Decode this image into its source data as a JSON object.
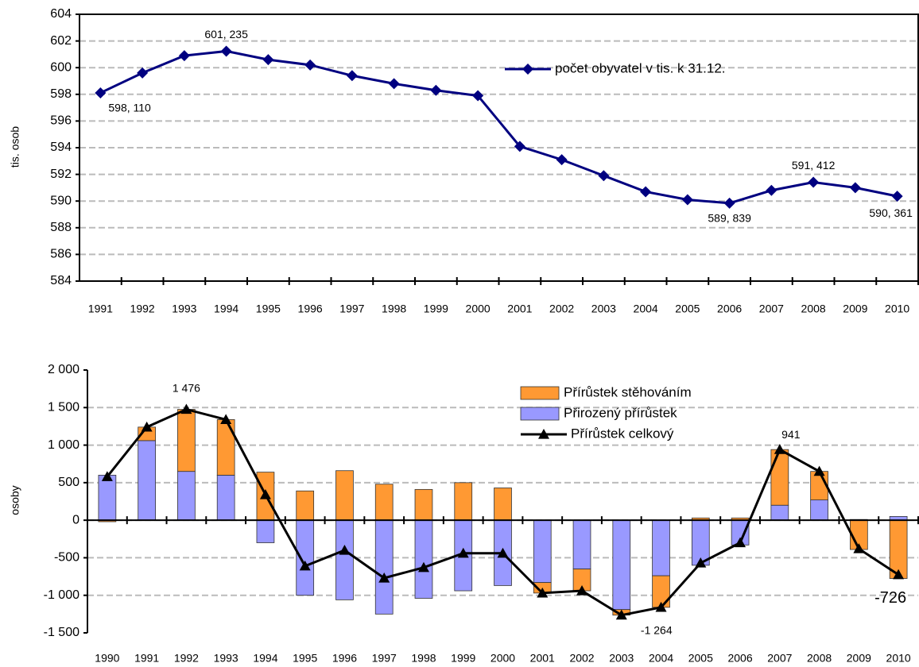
{
  "chart_data": [
    {
      "type": "line",
      "y_label": "tis. osob",
      "categories": [
        "1991",
        "1992",
        "1993",
        "1994",
        "1995",
        "1996",
        "1997",
        "1998",
        "1999",
        "2000",
        "2001",
        "2002",
        "2003",
        "2004",
        "2005",
        "2006",
        "2007",
        "2008",
        "2009",
        "2010"
      ],
      "series": [
        {
          "name": "počet obyvatel v tis. k 31.12.",
          "color": "#000080",
          "values": [
            598.11,
            599.6,
            600.9,
            601.235,
            600.6,
            600.2,
            599.4,
            598.8,
            598.3,
            597.9,
            594.1,
            593.1,
            591.9,
            590.7,
            590.1,
            589.839,
            590.8,
            591.412,
            591.0,
            590.361
          ],
          "value_labels": [
            "598, 110",
            null,
            null,
            "601, 235",
            null,
            null,
            null,
            null,
            null,
            null,
            null,
            null,
            null,
            null,
            null,
            "589, 839",
            null,
            "591, 412",
            null,
            "590, 361"
          ]
        }
      ],
      "ylim": [
        584,
        604
      ],
      "yticks": [
        584,
        586,
        588,
        590,
        592,
        594,
        596,
        598,
        600,
        602,
        604
      ],
      "grid": true
    },
    {
      "type": "stacked-bar-line",
      "y_label": "osoby",
      "categories": [
        "1990",
        "1991",
        "1992",
        "1993",
        "1994",
        "1995",
        "1996",
        "1997",
        "1998",
        "1999",
        "2000",
        "2001",
        "2002",
        "2003",
        "2004",
        "2005",
        "2006",
        "2007",
        "2008",
        "2009",
        "2010"
      ],
      "series": [
        {
          "name": "Přírůstek stěhováním",
          "kind": "bar",
          "color": "#ff9933",
          "values": [
            -20,
            180,
            826,
            740,
            640,
            390,
            660,
            480,
            410,
            500,
            430,
            -140,
            -290,
            -74,
            -420,
            30,
            30,
            741,
            380,
            -390,
            -776
          ]
        },
        {
          "name": "Přirozený přírůstek",
          "kind": "bar",
          "color": "#9999ff",
          "values": [
            600,
            1060,
            650,
            600,
            -300,
            -1000,
            -1060,
            -1250,
            -1040,
            -940,
            -870,
            -830,
            -650,
            -1190,
            -740,
            -600,
            -330,
            200,
            270,
            10,
            50
          ]
        },
        {
          "name": "Přírůstek celkový",
          "kind": "line",
          "color": "#000000",
          "values": [
            580,
            1240,
            1476,
            1340,
            340,
            -610,
            -400,
            -770,
            -630,
            -440,
            -440,
            -970,
            -940,
            -1264,
            -1160,
            -570,
            -300,
            941,
            650,
            -380,
            -726
          ],
          "value_labels": [
            null,
            null,
            "1 476",
            null,
            null,
            null,
            null,
            null,
            null,
            null,
            null,
            null,
            null,
            "-1 264",
            null,
            null,
            null,
            "941",
            null,
            null,
            "-726"
          ]
        }
      ],
      "ylim": [
        -1500,
        2000
      ],
      "yticks": [
        {
          "value": -1500,
          "label": "-1 500"
        },
        {
          "value": -1000,
          "label": "-1 000"
        },
        -500,
        0,
        500,
        {
          "value": 1000,
          "label": "1 000"
        },
        {
          "value": 1500,
          "label": "1 500"
        },
        {
          "value": 2000,
          "label": "2 000"
        }
      ],
      "grid": true
    }
  ]
}
